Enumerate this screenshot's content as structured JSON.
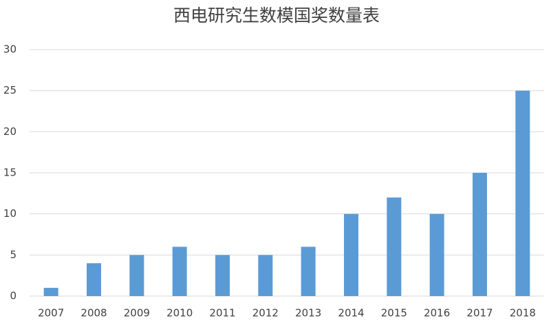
{
  "chart_data": {
    "type": "bar",
    "title": "西电研究生数模国奖数量表",
    "categories": [
      "2007",
      "2008",
      "2009",
      "2010",
      "2011",
      "2012",
      "2013",
      "2014",
      "2015",
      "2016",
      "2017",
      "2018"
    ],
    "values": [
      1,
      4,
      5,
      6,
      5,
      5,
      6,
      10,
      12,
      10,
      15,
      25
    ],
    "color": "#5b9bd5",
    "ylim": [
      0,
      30
    ],
    "yticks": [
      0,
      5,
      10,
      15,
      20,
      25,
      30
    ],
    "grid": true
  }
}
